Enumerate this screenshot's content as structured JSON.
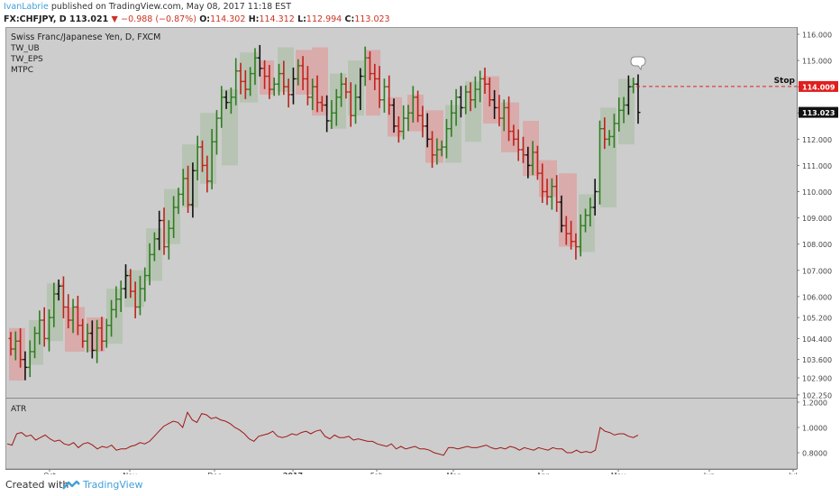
{
  "header": {
    "author": "IvanLabrie",
    "published": "published on TradingView.com, May 08, 2017 11:18 EST",
    "symbol": "FX:CHFJPY, D",
    "last": "113.021",
    "change": "−0.988 (−0.87%)",
    "o_label": "O:",
    "o": "114.302",
    "h_label": "H:",
    "h": "114.312",
    "l_label": "L:",
    "l": "112.994",
    "c_label": "C:",
    "c": "113.023"
  },
  "legend": {
    "title": "Swiss Franc/Japanese Yen, D, FXCM",
    "indicators": [
      "TW_UB",
      "TW_EPS",
      "MTPC"
    ]
  },
  "colors": {
    "background": "#cdcdcd",
    "up_candle": "#2e7d1f",
    "down_candle": "#c0221a",
    "up_box": "#b5c3b1",
    "down_box": "#d9a9a9",
    "atr_line": "#a01818",
    "stop_line": "#e22020"
  },
  "footer": {
    "created": "Created with",
    "brand": "TradingView"
  },
  "chart_data": [
    {
      "type": "candlestick",
      "instrument": "Swiss Franc/Japanese Yen, D, FXCM",
      "ylim": [
        102.3,
        116.2
      ],
      "y_ticks": [
        "116.000",
        "115.000",
        "114.000",
        "113.000",
        "112.000",
        "111.000",
        "110.000",
        "109.000",
        "108.000",
        "107.000",
        "106.000",
        "105.200",
        "104.400",
        "103.600",
        "102.900",
        "102.250"
      ],
      "x_ticks": [
        "Oct",
        "Nov",
        "Dec",
        "2017",
        "Feb",
        "Mar",
        "Apr",
        "May",
        "Jun",
        "Jul"
      ],
      "price_labels": {
        "stop": "114.009",
        "last": "113.023"
      },
      "stop_label": "Stop",
      "stop_level": 114.009,
      "last_level": 113.023,
      "closes": [
        104.0,
        104.3,
        103.6,
        103.3,
        103.9,
        104.6,
        105.1,
        104.4,
        105.2,
        106.1,
        106.4,
        105.6,
        105.1,
        105.6,
        104.9,
        104.3,
        104.6,
        103.95,
        104.8,
        104.3,
        104.9,
        105.5,
        105.9,
        106.3,
        106.8,
        106.2,
        105.6,
        106.3,
        106.8,
        107.6,
        108.2,
        108.9,
        107.9,
        108.6,
        109.4,
        109.9,
        110.5,
        109.5,
        110.8,
        111.7,
        111.0,
        110.4,
        111.9,
        112.8,
        113.6,
        113.4,
        113.6,
        114.6,
        114.2,
        113.9,
        114.5,
        115.1,
        114.7,
        114.4,
        113.9,
        114.1,
        114.5,
        114.0,
        113.7,
        114.3,
        114.8,
        114.3,
        113.6,
        114.0,
        113.4,
        113.3,
        112.7,
        113.0,
        113.6,
        114.1,
        113.8,
        112.9,
        113.6,
        114.4,
        115.1,
        114.5,
        114.3,
        113.5,
        114.0,
        113.3,
        112.5,
        112.3,
        112.8,
        113.0,
        113.6,
        112.9,
        112.5,
        112.0,
        111.4,
        111.6,
        111.7,
        112.4,
        113.0,
        113.6,
        113.2,
        113.8,
        113.5,
        113.9,
        114.3,
        114.1,
        113.5,
        113.2,
        112.8,
        113.2,
        112.3,
        112.0,
        111.6,
        111.4,
        111.0,
        111.5,
        110.7,
        110.0,
        109.8,
        110.2,
        109.6,
        108.7,
        108.4,
        108.1,
        107.9,
        108.7,
        109.1,
        109.4,
        110.0,
        112.4,
        112.0,
        112.1,
        112.6,
        113.1,
        113.3,
        114.0,
        114.1,
        113.02
      ],
      "x_positions_note": "",
      "boxes": [
        {
          "x0": 10,
          "x1": 28,
          "low": 102.8,
          "high": 104.8,
          "dir": "down"
        },
        {
          "x0": 32,
          "x1": 48,
          "low": 103.4,
          "high": 105.1,
          "dir": "up"
        },
        {
          "x0": 52,
          "x1": 70,
          "low": 104.3,
          "high": 106.5,
          "dir": "up"
        },
        {
          "x0": 72,
          "x1": 94,
          "low": 103.9,
          "high": 105.6,
          "dir": "down"
        },
        {
          "x0": 96,
          "x1": 116,
          "low": 103.9,
          "high": 105.2,
          "dir": "down"
        },
        {
          "x0": 118,
          "x1": 136,
          "low": 104.2,
          "high": 106.3,
          "dir": "up"
        },
        {
          "x0": 138,
          "x1": 160,
          "low": 105.6,
          "high": 107.0,
          "dir": "up"
        },
        {
          "x0": 162,
          "x1": 180,
          "low": 106.6,
          "high": 108.6,
          "dir": "up"
        },
        {
          "x0": 182,
          "x1": 200,
          "low": 108.0,
          "high": 110.1,
          "dir": "up"
        },
        {
          "x0": 202,
          "x1": 220,
          "low": 109.4,
          "high": 111.8,
          "dir": "up"
        },
        {
          "x0": 222,
          "x1": 240,
          "low": 110.3,
          "high": 113.0,
          "dir": "up"
        },
        {
          "x0": 246,
          "x1": 264,
          "low": 111.0,
          "high": 113.9,
          "dir": "up"
        },
        {
          "x0": 266,
          "x1": 286,
          "low": 113.4,
          "high": 115.3,
          "dir": "up"
        },
        {
          "x0": 288,
          "x1": 304,
          "low": 113.7,
          "high": 115.0,
          "dir": "down"
        },
        {
          "x0": 308,
          "x1": 326,
          "low": 113.8,
          "high": 115.5,
          "dir": "up"
        },
        {
          "x0": 328,
          "x1": 346,
          "low": 113.7,
          "high": 115.4,
          "dir": "down"
        },
        {
          "x0": 346,
          "x1": 364,
          "low": 112.9,
          "high": 115.5,
          "dir": "down"
        },
        {
          "x0": 366,
          "x1": 384,
          "low": 112.4,
          "high": 114.5,
          "dir": "up"
        },
        {
          "x0": 386,
          "x1": 404,
          "low": 112.9,
          "high": 115.0,
          "dir": "up"
        },
        {
          "x0": 406,
          "x1": 422,
          "low": 112.9,
          "high": 115.4,
          "dir": "down"
        },
        {
          "x0": 430,
          "x1": 446,
          "low": 112.1,
          "high": 113.6,
          "dir": "down"
        },
        {
          "x0": 452,
          "x1": 470,
          "low": 112.3,
          "high": 113.7,
          "dir": "down"
        },
        {
          "x0": 472,
          "x1": 492,
          "low": 111.1,
          "high": 113.1,
          "dir": "down"
        },
        {
          "x0": 494,
          "x1": 512,
          "low": 111.1,
          "high": 113.3,
          "dir": "up"
        },
        {
          "x0": 516,
          "x1": 534,
          "low": 111.9,
          "high": 114.2,
          "dir": "up"
        },
        {
          "x0": 536,
          "x1": 554,
          "low": 112.6,
          "high": 114.4,
          "dir": "down"
        },
        {
          "x0": 556,
          "x1": 576,
          "low": 111.5,
          "high": 113.4,
          "dir": "down"
        },
        {
          "x0": 580,
          "x1": 598,
          "low": 110.6,
          "high": 112.7,
          "dir": "down"
        },
        {
          "x0": 598,
          "x1": 618,
          "low": 109.8,
          "high": 111.2,
          "dir": "down"
        },
        {
          "x0": 620,
          "x1": 640,
          "low": 107.9,
          "high": 110.7,
          "dir": "down"
        },
        {
          "x0": 642,
          "x1": 660,
          "low": 107.7,
          "high": 109.9,
          "dir": "up"
        },
        {
          "x0": 666,
          "x1": 684,
          "low": 109.4,
          "high": 113.2,
          "dir": "up"
        },
        {
          "x0": 686,
          "x1": 704,
          "low": 111.8,
          "high": 114.3,
          "dir": "up"
        }
      ]
    },
    {
      "type": "line",
      "name": "ATR",
      "ylim": [
        0.72,
        1.25
      ],
      "y_ticks": [
        "1.2000",
        "1.0000",
        "0.8000"
      ],
      "values": [
        0.87,
        0.86,
        0.95,
        0.96,
        0.93,
        0.94,
        0.9,
        0.92,
        0.94,
        0.91,
        0.89,
        0.9,
        0.87,
        0.86,
        0.88,
        0.84,
        0.87,
        0.88,
        0.86,
        0.83,
        0.85,
        0.84,
        0.86,
        0.82,
        0.83,
        0.83,
        0.85,
        0.86,
        0.88,
        0.87,
        0.89,
        0.93,
        0.97,
        1.01,
        1.03,
        1.05,
        1.04,
        1.0,
        1.12,
        1.06,
        1.04,
        1.11,
        1.1,
        1.07,
        1.08,
        1.06,
        1.05,
        1.03,
        1.0,
        0.98,
        0.95,
        0.91,
        0.89,
        0.93,
        0.94,
        0.95,
        0.97,
        0.93,
        0.92,
        0.93,
        0.95,
        0.94,
        0.96,
        0.97,
        0.95,
        0.97,
        0.98,
        0.93,
        0.91,
        0.94,
        0.92,
        0.92,
        0.93,
        0.9,
        0.91,
        0.9,
        0.89,
        0.89,
        0.87,
        0.86,
        0.85,
        0.87,
        0.83,
        0.85,
        0.83,
        0.84,
        0.85,
        0.83,
        0.83,
        0.82,
        0.8,
        0.79,
        0.78,
        0.84,
        0.84,
        0.83,
        0.84,
        0.85,
        0.84,
        0.84,
        0.85,
        0.86,
        0.84,
        0.83,
        0.84,
        0.83,
        0.85,
        0.84,
        0.82,
        0.84,
        0.83,
        0.82,
        0.84,
        0.83,
        0.82,
        0.84,
        0.83,
        0.83,
        0.8,
        0.8,
        0.82,
        0.8,
        0.81,
        0.8,
        0.82,
        1.0,
        0.97,
        0.96,
        0.94,
        0.95,
        0.95,
        0.93,
        0.92,
        0.94
      ]
    }
  ]
}
